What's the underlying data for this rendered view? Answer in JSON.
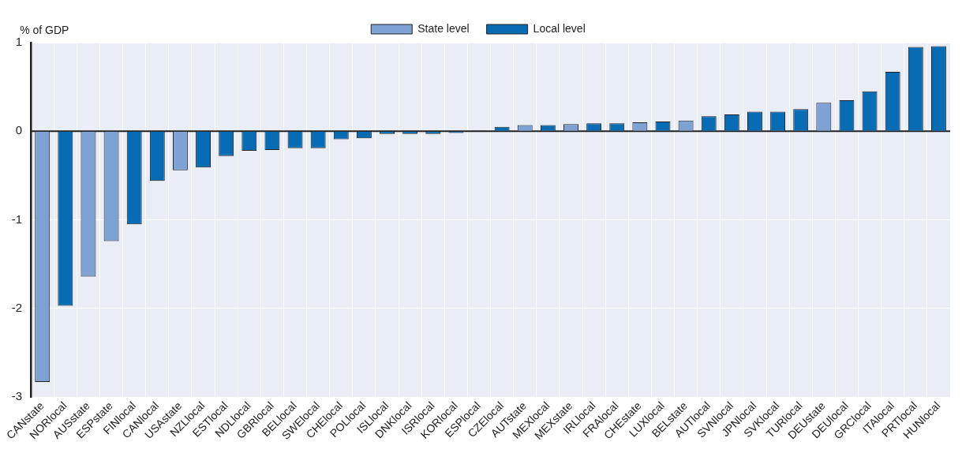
{
  "chart_data": {
    "type": "bar",
    "ylabel": "% of GDP",
    "categories": [
      "CANstate",
      "NORlocal",
      "AUSstate",
      "ESPstate",
      "FINlocal",
      "CANlocal",
      "USAstate",
      "NZLlocal",
      "ESTlocal",
      "NDLlocal",
      "GBRlocal",
      "BELlocal",
      "SWElocal",
      "CHElocal",
      "POLlocal",
      "ISLlocal",
      "DNKlocal",
      "ISRlocal",
      "KORlocal",
      "ESPlocal",
      "CZElocal",
      "AUTstate",
      "MEXlocal",
      "MEXstate",
      "IRLlocal",
      "FRAlocal",
      "CHEstate",
      "LUXlocal",
      "BELstate",
      "AUTlocal",
      "SVNlocal",
      "JPNlocal",
      "SVKlocal",
      "TURlocal",
      "DEUstate",
      "DEUlocal",
      "GRClocal",
      "ITAlocal",
      "PRTlocal",
      "HUNlocal"
    ],
    "series": [
      {
        "name": "State level",
        "color": "#7fa2d4",
        "values": [
          -2.83,
          null,
          -1.64,
          -1.24,
          null,
          null,
          -0.44,
          null,
          null,
          null,
          null,
          null,
          null,
          null,
          null,
          null,
          null,
          null,
          null,
          null,
          null,
          0.07,
          null,
          0.08,
          null,
          null,
          0.1,
          null,
          0.12,
          null,
          null,
          null,
          null,
          null,
          0.32,
          null,
          null,
          null,
          null,
          null
        ]
      },
      {
        "name": "Local level",
        "color": "#086cb4",
        "values": [
          null,
          -1.97,
          null,
          null,
          -1.05,
          -0.56,
          null,
          -0.41,
          -0.28,
          -0.22,
          -0.21,
          -0.19,
          -0.19,
          -0.09,
          -0.08,
          -0.03,
          -0.03,
          -0.03,
          -0.02,
          0.01,
          0.05,
          null,
          0.07,
          null,
          0.09,
          0.09,
          null,
          0.11,
          null,
          0.17,
          0.19,
          0.22,
          0.22,
          0.25,
          null,
          0.35,
          0.45,
          0.67,
          0.95,
          0.96
        ]
      }
    ],
    "ylim": [
      -3,
      1
    ],
    "yticks": [
      -3,
      -2,
      -1,
      0,
      1
    ],
    "grid": true,
    "legend": "top"
  }
}
